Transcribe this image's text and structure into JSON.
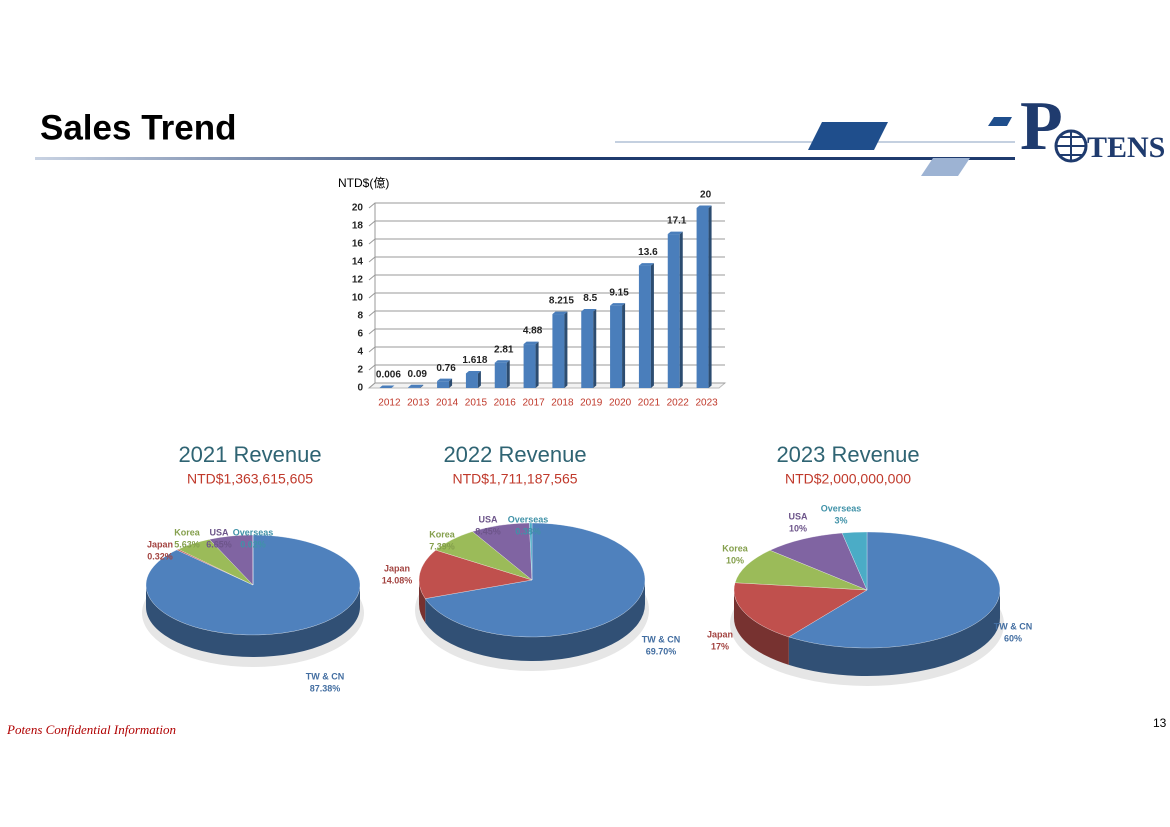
{
  "page": {
    "title": "Sales Trend",
    "footer": "Potens Confidential Information",
    "page_number": "13",
    "logo": {
      "left": "P",
      "right": "TENS"
    }
  },
  "chart_data": [
    {
      "type": "bar",
      "y_label": "NTD$(億)",
      "categories": [
        "2012",
        "2013",
        "2014",
        "2015",
        "2016",
        "2017",
        "2018",
        "2019",
        "2020",
        "2021",
        "2022",
        "2023"
      ],
      "values": [
        0.006,
        0.09,
        0.76,
        1.618,
        2.81,
        4.88,
        8.215,
        8.5,
        9.15,
        13.6,
        17.1,
        20
      ],
      "color": "#4a7ebb",
      "ylim": [
        0,
        20
      ],
      "yticks": [
        0,
        2,
        4,
        6,
        8,
        10,
        12,
        14,
        16,
        18,
        20
      ],
      "grid": true
    },
    {
      "type": "pie",
      "title": "2021 Revenue",
      "subtitle": "NTD$1,363,615,605",
      "categories": [
        "TW & CN",
        "Japan",
        "Korea",
        "USA",
        "Overseas"
      ],
      "values": [
        87.38,
        0.32,
        5.63,
        6.65,
        0.02
      ],
      "value_labels": [
        "87.38%",
        "0.32%",
        "5.63%",
        "6.65%",
        "0.02%"
      ],
      "colors": [
        "#4f81bd",
        "#c0504d",
        "#9bbb59",
        "#8064a2",
        "#4bacc6"
      ]
    },
    {
      "type": "pie",
      "title": "2022 Revenue",
      "subtitle": "NTD$1,711,187,565",
      "categories": [
        "TW & CN",
        "Japan",
        "Korea",
        "USA",
        "Overseas"
      ],
      "values": [
        69.7,
        14.08,
        7.39,
        8.45,
        0.38
      ],
      "value_labels": [
        "69.70%",
        "14.08%",
        "7.39%",
        "8.45%",
        "0.38%"
      ],
      "colors": [
        "#4f81bd",
        "#c0504d",
        "#9bbb59",
        "#8064a2",
        "#4bacc6"
      ]
    },
    {
      "type": "pie",
      "title": "2023 Revenue",
      "subtitle": "NTD$2,000,000,000",
      "categories": [
        "TW & CN",
        "Japan",
        "Korea",
        "USA",
        "Overseas"
      ],
      "values": [
        60,
        17,
        10,
        10,
        3
      ],
      "value_labels": [
        "60%",
        "17%",
        "10%",
        "10%",
        "3%"
      ],
      "colors": [
        "#4f81bd",
        "#c0504d",
        "#9bbb59",
        "#8064a2",
        "#4bacc6"
      ]
    }
  ]
}
